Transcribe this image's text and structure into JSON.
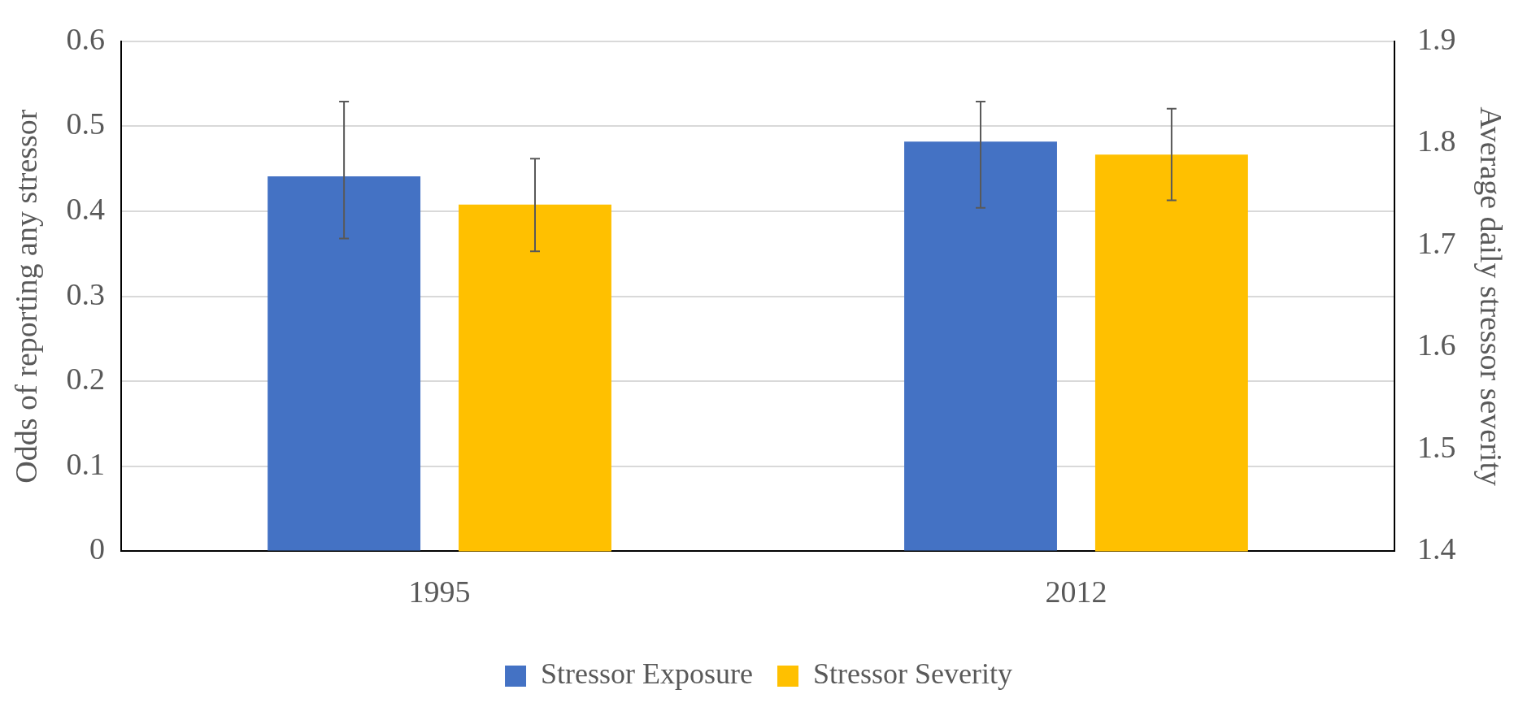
{
  "chart_data": {
    "type": "bar",
    "categories": [
      "1995",
      "2012"
    ],
    "ylabel": "Odds of reporting any stressor",
    "y2label": "Average daily stressor severity",
    "ylim": [
      0,
      0.6
    ],
    "yticks": [
      0,
      0.1,
      0.2,
      0.3,
      0.4,
      0.5,
      0.6
    ],
    "y2lim": [
      1.4,
      1.9
    ],
    "y2ticks": [
      1.4,
      1.5,
      1.6,
      1.7,
      1.8,
      1.9
    ],
    "grid": "y",
    "legend": "bottom",
    "series": [
      {
        "name": "Stressor Exposure",
        "color": "#4472c4",
        "values": [
          0.441,
          0.482
        ],
        "errors": [
          [
            0.368,
            0.529
          ],
          [
            0.404,
            0.529
          ]
        ]
      },
      {
        "name": "Stressor Severity",
        "color": "#ffc000",
        "axis": "y2",
        "values": [
          1.74,
          1.789
        ],
        "errors": [
          [
            1.694,
            1.785
          ],
          [
            1.744,
            1.834
          ]
        ]
      }
    ]
  }
}
